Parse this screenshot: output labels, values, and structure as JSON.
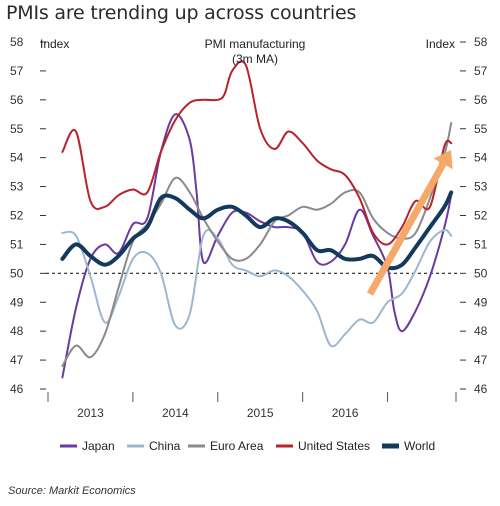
{
  "title": "PMIs are trending up across countries",
  "source": "Source: Markit Economics",
  "chart_data": {
    "type": "line",
    "annotation_title_line1": "PMI manufacturing",
    "annotation_title_line2": "(3m MA)",
    "left_axis_label": "Index",
    "right_axis_label": "Index",
    "ylim": [
      46,
      58
    ],
    "y_ticks": [
      46,
      47,
      48,
      49,
      50,
      51,
      52,
      53,
      54,
      55,
      56,
      57,
      58
    ],
    "x_tick_labels": [
      "2013",
      "2014",
      "2015",
      "2016"
    ],
    "reference_line": 50,
    "grid": false,
    "legend_position": "bottom",
    "arrow_color": "#f5a868",
    "series": [
      {
        "name": "Japan",
        "color": "#6a3aa0",
        "width": 2,
        "x": [
          2012.17,
          2012.33,
          2012.5,
          2012.67,
          2012.83,
          2013.0,
          2013.17,
          2013.33,
          2013.5,
          2013.67,
          2013.75,
          2013.83,
          2014.0,
          2014.17,
          2014.33,
          2014.5,
          2014.67,
          2014.83,
          2015.0,
          2015.17,
          2015.33,
          2015.5,
          2015.67,
          2015.83,
          2016.0,
          2016.08,
          2016.17,
          2016.33,
          2016.5,
          2016.67,
          2016.75
        ],
        "values": [
          46.4,
          48.8,
          50.5,
          51.0,
          50.7,
          51.7,
          51.9,
          54.2,
          55.5,
          54.6,
          52.8,
          50.4,
          51.3,
          52.1,
          52.1,
          51.8,
          51.6,
          51.6,
          51.4,
          50.4,
          50.4,
          51.0,
          52.2,
          51.3,
          50.2,
          48.7,
          48.0,
          48.7,
          49.9,
          51.6,
          52.7
        ]
      },
      {
        "name": "China",
        "color": "#9db7d3",
        "width": 2,
        "x": [
          2012.17,
          2012.33,
          2012.5,
          2012.67,
          2012.83,
          2013.0,
          2013.17,
          2013.33,
          2013.5,
          2013.67,
          2013.83,
          2014.0,
          2014.17,
          2014.33,
          2014.5,
          2014.67,
          2014.83,
          2015.0,
          2015.17,
          2015.33,
          2015.5,
          2015.67,
          2015.83,
          2016.0,
          2016.17,
          2016.33,
          2016.5,
          2016.67,
          2016.75
        ],
        "values": [
          51.4,
          51.3,
          49.9,
          48.3,
          49.2,
          50.5,
          50.7,
          50.0,
          48.2,
          48.6,
          51.3,
          51.2,
          50.3,
          50.1,
          49.9,
          50.1,
          49.9,
          49.4,
          48.7,
          47.5,
          47.9,
          48.4,
          48.3,
          49.0,
          49.3,
          50.1,
          51.1,
          51.5,
          51.3
        ]
      },
      {
        "name": "Euro Area",
        "color": "#8a8a8a",
        "width": 2,
        "x": [
          2012.17,
          2012.33,
          2012.5,
          2012.67,
          2012.83,
          2013.0,
          2013.17,
          2013.33,
          2013.5,
          2013.67,
          2013.83,
          2014.0,
          2014.17,
          2014.33,
          2014.5,
          2014.67,
          2014.83,
          2015.0,
          2015.17,
          2015.33,
          2015.5,
          2015.67,
          2015.83,
          2016.0,
          2016.17,
          2016.33,
          2016.5,
          2016.67,
          2016.75
        ],
        "values": [
          46.8,
          47.5,
          47.1,
          47.9,
          49.5,
          51.1,
          51.7,
          52.4,
          53.3,
          52.8,
          51.9,
          51.1,
          50.5,
          50.5,
          51.0,
          51.8,
          52.0,
          52.3,
          52.2,
          52.4,
          52.8,
          52.8,
          51.9,
          51.4,
          51.2,
          51.4,
          52.6,
          54.1,
          55.2
        ]
      },
      {
        "name": "United States",
        "color": "#b8222a",
        "width": 2,
        "x": [
          2012.17,
          2012.33,
          2012.5,
          2012.67,
          2012.83,
          2013.0,
          2013.17,
          2013.33,
          2013.5,
          2013.67,
          2013.83,
          2014.0,
          2014.08,
          2014.17,
          2014.33,
          2014.5,
          2014.67,
          2014.83,
          2015.0,
          2015.17,
          2015.33,
          2015.5,
          2015.67,
          2015.83,
          2016.0,
          2016.17,
          2016.33,
          2016.5,
          2016.67,
          2016.75
        ],
        "values": [
          54.2,
          54.9,
          52.5,
          52.3,
          52.7,
          52.9,
          52.8,
          54.2,
          55.3,
          55.9,
          56.0,
          56.0,
          56.2,
          57.0,
          57.2,
          55.0,
          54.3,
          54.9,
          54.5,
          53.9,
          53.6,
          53.4,
          52.6,
          51.4,
          51.0,
          51.6,
          52.5,
          52.3,
          54.4,
          54.5
        ]
      },
      {
        "name": "World",
        "color": "#13395d",
        "width": 4,
        "x": [
          2012.17,
          2012.33,
          2012.5,
          2012.67,
          2012.83,
          2013.0,
          2013.17,
          2013.33,
          2013.5,
          2013.67,
          2013.83,
          2014.0,
          2014.17,
          2014.33,
          2014.5,
          2014.67,
          2014.83,
          2015.0,
          2015.17,
          2015.33,
          2015.5,
          2015.67,
          2015.83,
          2016.0,
          2016.17,
          2016.33,
          2016.5,
          2016.67,
          2016.75
        ],
        "values": [
          50.5,
          51.0,
          50.6,
          50.3,
          50.6,
          51.2,
          51.6,
          52.6,
          52.6,
          52.2,
          51.9,
          52.2,
          52.3,
          52.0,
          51.6,
          51.9,
          51.8,
          51.4,
          50.8,
          50.8,
          50.5,
          50.5,
          50.6,
          50.2,
          50.3,
          50.9,
          51.6,
          52.3,
          52.8
        ]
      }
    ]
  }
}
